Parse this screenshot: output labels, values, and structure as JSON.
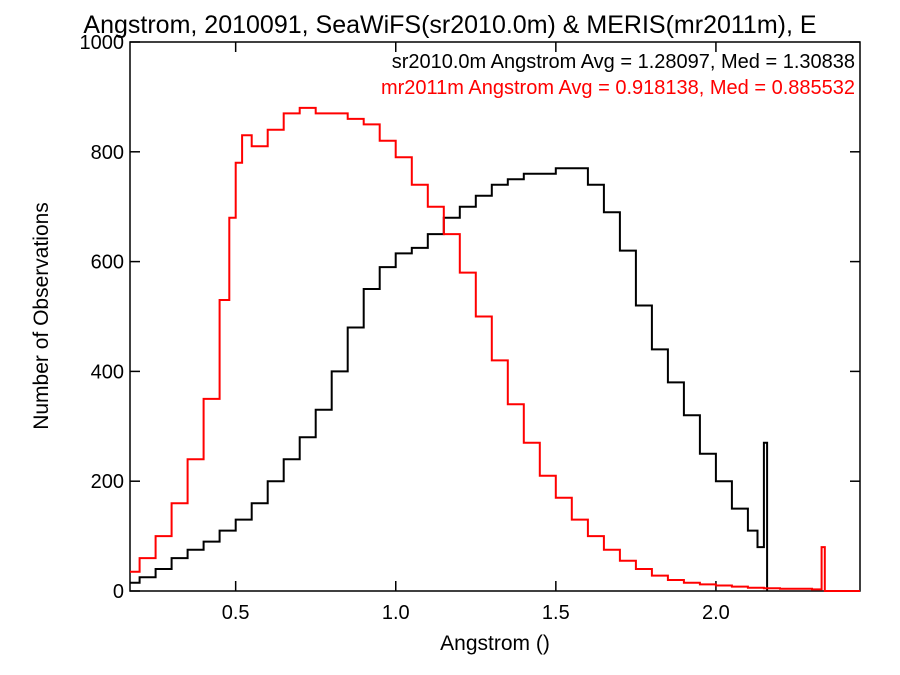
{
  "chart_data": {
    "type": "line",
    "title": "Angstrom, 2010091, SeaWiFS(sr2010.0m) & MERIS(mr2011m), E",
    "xlabel": "Angstrom ()",
    "ylabel": "Number of Observations",
    "xlim": [
      0.17,
      2.45
    ],
    "ylim": [
      0,
      1000
    ],
    "x_ticks": [
      {
        "value": 0.5,
        "label": "0.5"
      },
      {
        "value": 1.0,
        "label": "1.0"
      },
      {
        "value": 1.5,
        "label": "1.5"
      },
      {
        "value": 2.0,
        "label": "2.0"
      }
    ],
    "y_ticks": [
      {
        "value": 0,
        "label": "0"
      },
      {
        "value": 200,
        "label": "200"
      },
      {
        "value": 400,
        "label": "400"
      },
      {
        "value": 600,
        "label": "600"
      },
      {
        "value": 800,
        "label": "800"
      },
      {
        "value": 1000,
        "label": "1000"
      }
    ],
    "annotations": [
      {
        "text": "sr2010.0m Angstrom Avg = 1.28097, Med = 1.30838",
        "color": "#000000"
      },
      {
        "text": "mr2011m Angstrom Avg = 0.918138, Med = 0.885532",
        "color": "#ff0000"
      }
    ],
    "series": [
      {
        "color": "#000000",
        "x": [
          0.17,
          0.2,
          0.25,
          0.3,
          0.35,
          0.4,
          0.45,
          0.5,
          0.55,
          0.6,
          0.65,
          0.7,
          0.75,
          0.8,
          0.85,
          0.9,
          0.95,
          1.0,
          1.05,
          1.1,
          1.15,
          1.2,
          1.25,
          1.3,
          1.35,
          1.4,
          1.45,
          1.5,
          1.55,
          1.6,
          1.65,
          1.7,
          1.75,
          1.8,
          1.85,
          1.9,
          1.95,
          2.0,
          2.05,
          2.1,
          2.13,
          2.15,
          2.16
        ],
        "y": [
          15,
          25,
          40,
          60,
          75,
          90,
          110,
          130,
          160,
          200,
          240,
          280,
          330,
          400,
          480,
          550,
          590,
          615,
          625,
          650,
          680,
          700,
          720,
          740,
          750,
          760,
          760,
          770,
          770,
          740,
          690,
          620,
          520,
          440,
          380,
          320,
          250,
          200,
          150,
          110,
          80,
          270,
          0
        ]
      },
      {
        "color": "#ff0000",
        "x": [
          0.17,
          0.2,
          0.25,
          0.3,
          0.35,
          0.4,
          0.45,
          0.48,
          0.5,
          0.52,
          0.55,
          0.6,
          0.65,
          0.7,
          0.75,
          0.8,
          0.85,
          0.9,
          0.95,
          1.0,
          1.05,
          1.1,
          1.15,
          1.2,
          1.25,
          1.3,
          1.35,
          1.4,
          1.45,
          1.5,
          1.55,
          1.6,
          1.65,
          1.7,
          1.75,
          1.8,
          1.85,
          1.9,
          1.95,
          2.0,
          2.05,
          2.1,
          2.15,
          2.2,
          2.25,
          2.3,
          2.33,
          2.34,
          2.45
        ],
        "y": [
          35,
          60,
          100,
          160,
          240,
          350,
          530,
          680,
          780,
          830,
          810,
          840,
          870,
          880,
          870,
          870,
          860,
          850,
          820,
          790,
          740,
          700,
          650,
          580,
          500,
          420,
          340,
          270,
          210,
          170,
          130,
          100,
          75,
          55,
          40,
          28,
          20,
          15,
          12,
          10,
          8,
          6,
          5,
          4,
          4,
          3,
          80,
          0,
          0
        ]
      }
    ]
  }
}
